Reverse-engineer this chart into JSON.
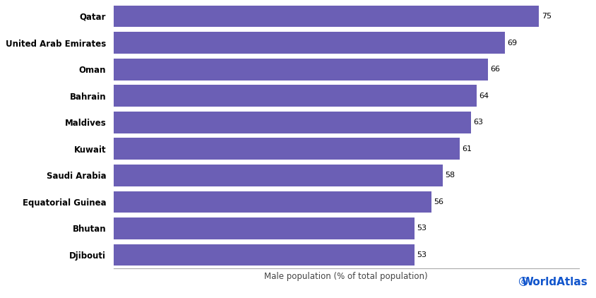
{
  "countries": [
    "Djibouti",
    "Bhutan",
    "Equatorial Guinea",
    "Saudi Arabia",
    "Kuwait",
    "Maldives",
    "Bahrain",
    "Oman",
    "United Arab Emirates",
    "Qatar"
  ],
  "values": [
    53,
    53,
    56,
    58,
    61,
    63,
    64,
    66,
    69,
    75
  ],
  "bar_color": "#6b5fb5",
  "background_color": "#ffffff",
  "xlabel": "Male population (% of total population)",
  "xlim": [
    0,
    82
  ],
  "bar_height": 0.82,
  "label_fontsize": 8.5,
  "xlabel_fontsize": 8.5,
  "value_fontsize": 8,
  "watermark_text": "WorldAtlas",
  "watermark_color": "#1155cc",
  "watermark_fontsize": 11,
  "spine_color": "#aaaaaa"
}
